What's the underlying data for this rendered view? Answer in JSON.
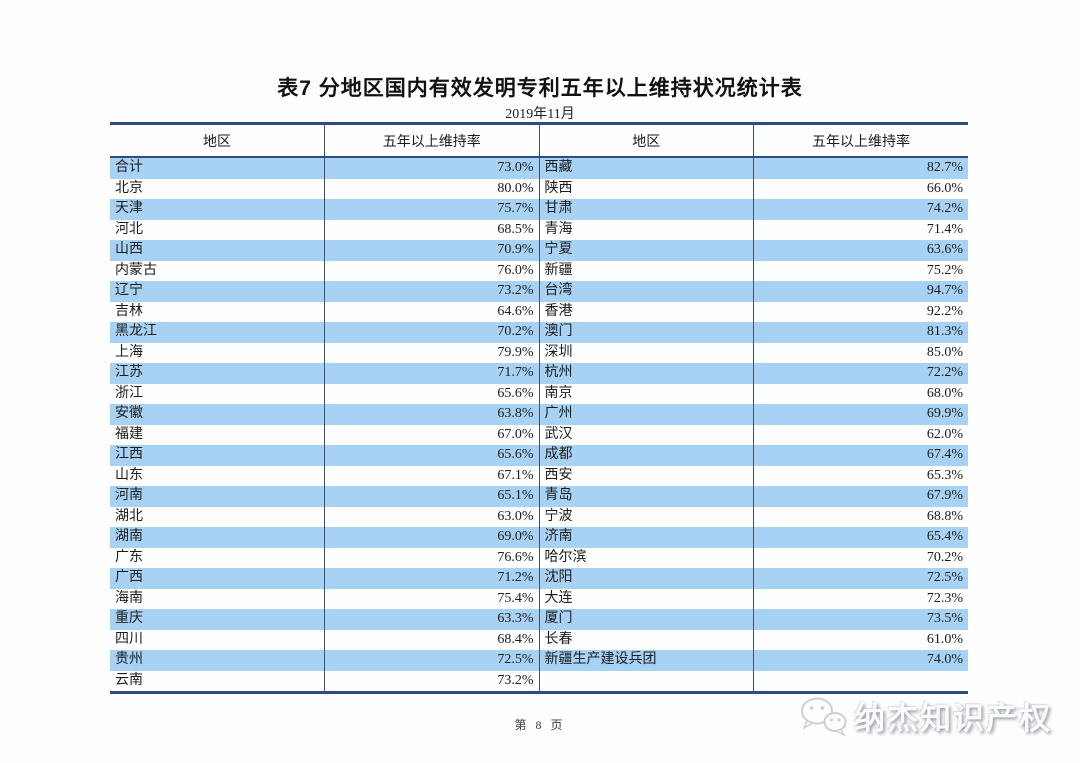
{
  "page": {
    "title": "表7  分地区国内有效发明专利五年以上维持状况统计表",
    "subtitle": "2019年11月",
    "footer_page": "第 8 页",
    "watermark_text": "纳杰知识产权"
  },
  "colors": {
    "stripe_blue": "#a8d2f3",
    "rule_navy": "#2f4b80",
    "divider_slate": "#44506b"
  },
  "table": {
    "headers": [
      "地区",
      "五年以上维持率",
      "地区",
      "五年以上维持率"
    ],
    "rows": [
      [
        "合计",
        "73.0%",
        "西藏",
        "82.7%"
      ],
      [
        "北京",
        "80.0%",
        "陕西",
        "66.0%"
      ],
      [
        "天津",
        "75.7%",
        "甘肃",
        "74.2%"
      ],
      [
        "河北",
        "68.5%",
        "青海",
        "71.4%"
      ],
      [
        "山西",
        "70.9%",
        "宁夏",
        "63.6%"
      ],
      [
        "内蒙古",
        "76.0%",
        "新疆",
        "75.2%"
      ],
      [
        "辽宁",
        "73.2%",
        "台湾",
        "94.7%"
      ],
      [
        "吉林",
        "64.6%",
        "香港",
        "92.2%"
      ],
      [
        "黑龙江",
        "70.2%",
        "澳门",
        "81.3%"
      ],
      [
        "上海",
        "79.9%",
        "深圳",
        "85.0%"
      ],
      [
        "江苏",
        "71.7%",
        "杭州",
        "72.2%"
      ],
      [
        "浙江",
        "65.6%",
        "南京",
        "68.0%"
      ],
      [
        "安徽",
        "63.8%",
        "广州",
        "69.9%"
      ],
      [
        "福建",
        "67.0%",
        "武汉",
        "62.0%"
      ],
      [
        "江西",
        "65.6%",
        "成都",
        "67.4%"
      ],
      [
        "山东",
        "67.1%",
        "西安",
        "65.3%"
      ],
      [
        "河南",
        "65.1%",
        "青岛",
        "67.9%"
      ],
      [
        "湖北",
        "63.0%",
        "宁波",
        "68.8%"
      ],
      [
        "湖南",
        "69.0%",
        "济南",
        "65.4%"
      ],
      [
        "广东",
        "76.6%",
        "哈尔滨",
        "70.2%"
      ],
      [
        "广西",
        "71.2%",
        "沈阳",
        "72.5%"
      ],
      [
        "海南",
        "75.4%",
        "大连",
        "72.3%"
      ],
      [
        "重庆",
        "63.3%",
        "厦门",
        "73.5%"
      ],
      [
        "四川",
        "68.4%",
        "长春",
        "61.0%"
      ],
      [
        "贵州",
        "72.5%",
        "新疆生产建设兵团",
        "74.0%"
      ],
      [
        "云南",
        "73.2%",
        "",
        ""
      ]
    ]
  }
}
